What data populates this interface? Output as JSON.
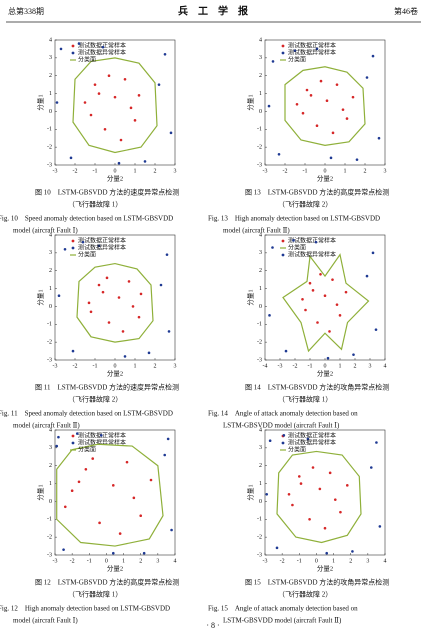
{
  "header": {
    "left": "总第338期",
    "title": "兵　工　学　报",
    "right": "第46卷"
  },
  "page_number": "· 8 ·",
  "chart_data": [
    {
      "type": "scatter",
      "xlabel": "分量2",
      "ylabel": "分量1",
      "xlim": [
        -3,
        3
      ],
      "ylim": [
        -3,
        4
      ],
      "xticks": [
        -3,
        -2,
        -1,
        0,
        1,
        2,
        3
      ],
      "yticks": [
        -3,
        -2,
        -1,
        0,
        1,
        2,
        3,
        4
      ],
      "caption": [
        "图 10　LSTM-GBSVDD 方法的速度异常点检测",
        "（飞行器故障 1）",
        "Fig. 10　Speed anomaly detection based on LSTM-GBSVDD",
        "model (aircraft Fault Ⅰ)"
      ],
      "series": [
        {
          "name": "测试数据正常样本",
          "type": "scatter",
          "color": "#d62728",
          "x": [
            -1.5,
            -1,
            -0.5,
            0,
            0.5,
            1,
            1.2,
            -1.2,
            0.3,
            -0.3,
            0.8,
            -0.8
          ],
          "y": [
            0.5,
            1.5,
            -1,
            0.8,
            1.8,
            -0.5,
            0.9,
            -0.2,
            -1.6,
            2,
            0.2,
            1
          ]
        },
        {
          "name": "测试数据异常样本",
          "type": "scatter",
          "color": "#1f3a93",
          "x": [
            -2.7,
            2.5,
            -2.2,
            2.8,
            1.5,
            -1.8,
            0.2,
            2.2,
            -2.9,
            -0.6
          ],
          "y": [
            3.5,
            3.2,
            -2.6,
            -1.2,
            -2.8,
            3.8,
            -2.9,
            1.5,
            0.5,
            3.6
          ]
        },
        {
          "name": "分类面",
          "type": "line",
          "color": "#8fb03a",
          "x": [
            -2,
            -1.2,
            0,
            1.2,
            2,
            2.1,
            1.3,
            0,
            -1.3,
            -2.1
          ],
          "y": [
            1.8,
            2.8,
            3,
            2.7,
            1.6,
            -0.8,
            -2,
            -2.3,
            -1.9,
            -0.6
          ]
        }
      ]
    },
    {
      "type": "scatter",
      "xlabel": "分量2",
      "ylabel": "分量1",
      "xlim": [
        -3,
        3
      ],
      "ylim": [
        -3,
        4
      ],
      "xticks": [
        -3,
        -2,
        -1,
        0,
        1,
        2,
        3
      ],
      "yticks": [
        -3,
        -2,
        -1,
        0,
        1,
        2,
        3,
        4
      ],
      "caption": [
        "图 13　LSTM-GBSVDD 方法的高度异常点检测",
        "（飞行器故障 2）",
        "Fig. 13　High anomaly detection based on LSTM-GBSVDD",
        "model (aircraft Fault Ⅱ)"
      ],
      "series": [
        {
          "name": "测试数据正常样本",
          "type": "scatter",
          "color": "#d62728",
          "x": [
            -1.4,
            -0.9,
            -0.4,
            0.1,
            0.6,
            1.1,
            1.4,
            -1.1,
            0.4,
            -0.2,
            0.9,
            -0.7
          ],
          "y": [
            0.4,
            1.2,
            -0.8,
            0.6,
            1.5,
            -0.4,
            0.8,
            -0.1,
            -1.2,
            1.7,
            0.1,
            0.9
          ]
        },
        {
          "name": "测试数据异常样本",
          "type": "scatter",
          "color": "#1f3a93",
          "x": [
            -2.6,
            2.4,
            -2.3,
            2.7,
            1.6,
            -1.5,
            0.3,
            2.1,
            -2.8,
            -0.4
          ],
          "y": [
            2.8,
            3.1,
            -2.4,
            -1.5,
            -2.7,
            3.4,
            -2.6,
            1.9,
            0.3,
            3.5
          ]
        },
        {
          "name": "分类面",
          "type": "line",
          "color": "#8fb03a",
          "x": [
            -2,
            -1.1,
            0,
            1.1,
            1.9,
            2,
            1.2,
            0,
            -1.2,
            -2
          ],
          "y": [
            1.5,
            2.3,
            2.5,
            2.2,
            1.3,
            -0.7,
            -1.7,
            -1.9,
            -1.6,
            -0.5
          ]
        }
      ]
    },
    {
      "type": "scatter",
      "xlabel": "分量2",
      "ylabel": "分量1",
      "xlim": [
        -3,
        3
      ],
      "ylim": [
        -3,
        4
      ],
      "xticks": [
        -3,
        -2,
        -1,
        0,
        1,
        2,
        3
      ],
      "yticks": [
        -3,
        -2,
        -1,
        0,
        1,
        2,
        3,
        4
      ],
      "caption": [
        "图 11　LSTM-GBSVDD 方法的速度异常点检测",
        "（飞行器故障 2）",
        "Fig. 11　Speed anomaly detection based on LSTM-GBSVDD",
        "model (aircraft Fault Ⅱ)"
      ],
      "series": [
        {
          "name": "测试数据正常样本",
          "type": "scatter",
          "color": "#d62728",
          "x": [
            -1.3,
            -0.8,
            -0.3,
            0.2,
            0.7,
            1.2,
            1.3,
            -1.2,
            0.4,
            -0.4,
            0.9,
            -0.6
          ],
          "y": [
            0.2,
            1.2,
            -0.9,
            0.5,
            1.4,
            -0.6,
            0.7,
            -0.3,
            -1.4,
            1.6,
            0,
            0.8
          ]
        },
        {
          "name": "测试数据异常样本",
          "type": "scatter",
          "color": "#1f3a93",
          "x": [
            -2.5,
            2.6,
            -2.1,
            2.7,
            1.7,
            -1.6,
            0.5,
            2.3,
            -2.8,
            -0.8
          ],
          "y": [
            3.2,
            2.9,
            -2.5,
            -1.4,
            -2.6,
            3.6,
            -2.8,
            1.2,
            0.6,
            3.4
          ]
        },
        {
          "name": "分类面",
          "type": "line",
          "color": "#8fb03a",
          "x": [
            -1.8,
            -1,
            0,
            1.1,
            1.8,
            1.9,
            1.2,
            0,
            -1.2,
            -1.9
          ],
          "y": [
            1.4,
            2.2,
            2.4,
            2.1,
            1.2,
            -0.8,
            -1.8,
            -2,
            -1.7,
            -0.6
          ]
        }
      ]
    },
    {
      "type": "scatter",
      "xlabel": "分量2",
      "ylabel": "分量1",
      "xlim": [
        -4,
        4
      ],
      "ylim": [
        -3,
        4
      ],
      "xticks": [
        -4,
        -3,
        -2,
        -1,
        0,
        1,
        2,
        3,
        4
      ],
      "yticks": [
        -3,
        -2,
        -1,
        0,
        1,
        2,
        3,
        4
      ],
      "caption": [
        "图 14　LSTM-GBSVDD 方法的攻角异常点检测",
        "（飞行器故障 1）",
        "Fig. 14　Angle of attack anomaly detection based on",
        "LSTM-GBSVDD model (aircraft Fault Ⅰ)"
      ],
      "series": [
        {
          "name": "测试数据正常样本",
          "type": "scatter",
          "color": "#d62728",
          "x": [
            -1.5,
            -1,
            -0.5,
            0,
            0.5,
            1,
            1.4,
            -1.3,
            0.3,
            -0.3,
            0.8,
            -0.8
          ],
          "y": [
            0.4,
            1.3,
            -0.9,
            0.6,
            1.5,
            -0.5,
            0.8,
            -0.2,
            -1.4,
            1.8,
            0.1,
            0.9
          ]
        },
        {
          "name": "分类面",
          "type": "line",
          "color": "#8fb03a",
          "x": [
            -2.8,
            -1.2,
            -1,
            0,
            1,
            1.4,
            2.9,
            1.5,
            1.1,
            0,
            -1.1,
            -1.6
          ],
          "y": [
            0.5,
            1.4,
            2.8,
            1.7,
            2.9,
            1.3,
            0.3,
            -0.9,
            -2.4,
            -1.5,
            -2.5,
            -0.9
          ]
        },
        {
          "name": "测试数据异常样本",
          "type": "scatter",
          "color": "#1f3a93",
          "x": [
            -3.5,
            3.2,
            -2.6,
            3.4,
            1.9,
            -2.1,
            0.2,
            2.8,
            -3.7,
            -0.6
          ],
          "y": [
            3.3,
            3,
            -2.5,
            -1.3,
            -2.7,
            3.7,
            -2.9,
            1.7,
            -0.5,
            3.6
          ]
        }
      ]
    },
    {
      "type": "scatter",
      "xlabel": "分量2",
      "ylabel": "分量1",
      "xlim": [
        -3,
        4
      ],
      "ylim": [
        -3,
        4
      ],
      "xticks": [
        -3,
        -2,
        -1,
        0,
        1,
        2,
        3,
        4
      ],
      "yticks": [
        -3,
        -2,
        -1,
        0,
        1,
        2,
        3,
        4
      ],
      "caption": [
        "图 12　LSTM-GBSVDD 方法的高度异常点检测",
        "（飞行器故障 1）",
        "Fig. 12　High anomaly detection based on LSTM-GBSVDD",
        "model (aircraft Fault Ⅰ)"
      ],
      "series": [
        {
          "name": "测试数据正常样本",
          "type": "scatter",
          "color": "#d62728",
          "x": [
            -2,
            -1.2,
            -0.4,
            0.4,
            1.2,
            2,
            2.6,
            -2.4,
            0.8,
            -0.8,
            1.6,
            -1.6
          ],
          "y": [
            0.6,
            1.8,
            -1.2,
            0.9,
            2.2,
            -0.8,
            1.2,
            -0.3,
            -1.8,
            2.4,
            0.2,
            1.1
          ]
        },
        {
          "name": "测试数据异常样本",
          "type": "scatter",
          "color": "#1f3a93",
          "x": [
            -2.8,
            3.6,
            -2.5,
            3.8,
            2.2,
            -1.7,
            0.4,
            3.4,
            -2.9,
            -0.3
          ],
          "y": [
            3.6,
            3.5,
            -2.7,
            -1.6,
            -2.9,
            3.8,
            -2.9,
            2.6,
            3.1,
            3.7
          ]
        },
        {
          "name": "分类面",
          "type": "line",
          "color": "#8fb03a",
          "x": [
            -2.9,
            -2,
            -0.5,
            1.5,
            3,
            3.3,
            2.5,
            0.5,
            -1.5,
            -2.9
          ],
          "y": [
            1.8,
            2.9,
            3.2,
            3.1,
            2,
            -0.8,
            -2.1,
            -2.5,
            -2.3,
            -1
          ]
        }
      ]
    },
    {
      "type": "scatter",
      "xlabel": "分量2",
      "ylabel": "分量1",
      "xlim": [
        -3,
        4
      ],
      "ylim": [
        -3,
        4
      ],
      "xticks": [
        -3,
        -2,
        -1,
        0,
        1,
        2,
        3,
        4
      ],
      "yticks": [
        -3,
        -2,
        -1,
        0,
        1,
        2,
        3,
        4
      ],
      "caption": [
        "图 15　LSTM-GBSVDD 方法的攻角异常点检测",
        "（飞行器故障 2）",
        "Fig. 15　Angle of attack anomaly detection based on",
        "LSTM-GBSVDD model (aircraft Fault Ⅱ)"
      ],
      "series": [
        {
          "name": "测试数据正常样本",
          "type": "scatter",
          "color": "#d62728",
          "x": [
            -1.6,
            -1,
            -0.4,
            0.2,
            0.8,
            1.4,
            1.8,
            -1.4,
            0.5,
            -0.2,
            1.1,
            -0.9
          ],
          "y": [
            0.4,
            1.4,
            -1,
            0.7,
            1.6,
            -0.6,
            0.9,
            -0.2,
            -1.5,
            1.9,
            0.1,
            1
          ]
        },
        {
          "name": "测试数据异常样本",
          "type": "scatter",
          "color": "#1f3a93",
          "x": [
            -2.7,
            3.5,
            -2.3,
            3.7,
            2.1,
            -1.9,
            0.6,
            3.2,
            -2.9,
            -0.5
          ],
          "y": [
            3.4,
            3.3,
            -2.6,
            -1.4,
            -2.8,
            3.7,
            -2.9,
            1.9,
            0.4,
            3.5
          ]
        },
        {
          "name": "分类面",
          "type": "line",
          "color": "#8fb03a",
          "x": [
            -2.2,
            -1.4,
            0,
            1.5,
            2.5,
            2.6,
            1.8,
            0.3,
            -1.2,
            -2.3
          ],
          "y": [
            1.6,
            2.6,
            2.8,
            2.6,
            1.4,
            -0.7,
            -1.9,
            -2.3,
            -2,
            -0.7
          ]
        }
      ]
    }
  ]
}
